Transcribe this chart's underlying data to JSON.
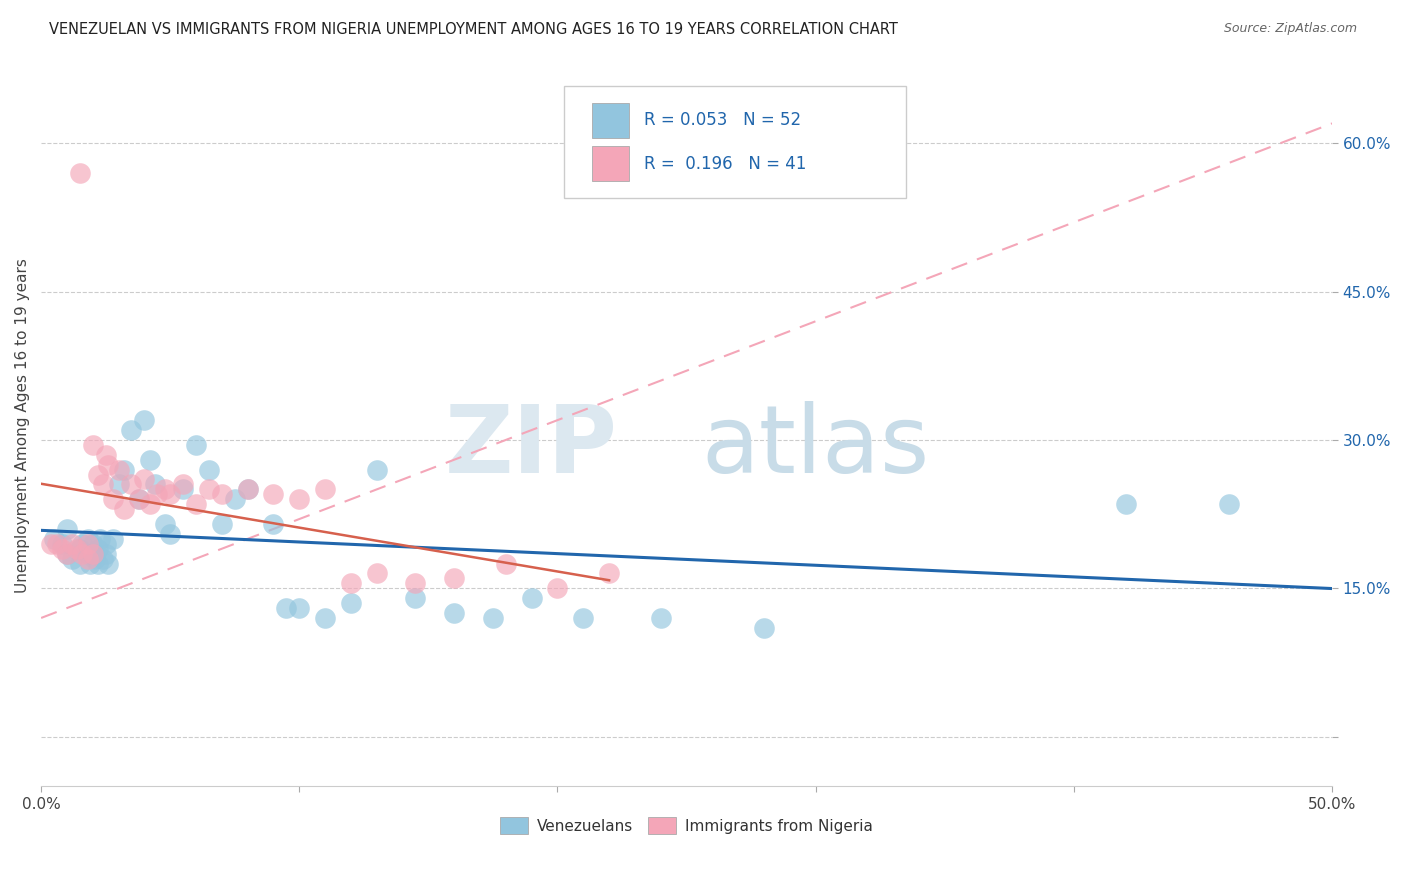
{
  "title": "VENEZUELAN VS IMMIGRANTS FROM NIGERIA UNEMPLOYMENT AMONG AGES 16 TO 19 YEARS CORRELATION CHART",
  "source": "Source: ZipAtlas.com",
  "ylabel": "Unemployment Among Ages 16 to 19 years",
  "xlim": [
    0.0,
    0.5
  ],
  "ylim": [
    -0.05,
    0.68
  ],
  "yticks_right": [
    0.0,
    0.15,
    0.3,
    0.45,
    0.6
  ],
  "ytick_labels_right": [
    "",
    "15.0%",
    "30.0%",
    "45.0%",
    "60.0%"
  ],
  "blue_color": "#92c5de",
  "pink_color": "#f4a6b8",
  "blue_line_color": "#2166ac",
  "pink_line_color": "#d6604d",
  "pink_dash_color": "#f4a6b8",
  "venezuelans_x": [
    0.005,
    0.008,
    0.01,
    0.01,
    0.012,
    0.015,
    0.015,
    0.016,
    0.018,
    0.018,
    0.019,
    0.02,
    0.02,
    0.021,
    0.022,
    0.022,
    0.023,
    0.024,
    0.025,
    0.025,
    0.026,
    0.028,
    0.03,
    0.032,
    0.035,
    0.038,
    0.04,
    0.042,
    0.044,
    0.048,
    0.05,
    0.055,
    0.06,
    0.065,
    0.07,
    0.075,
    0.08,
    0.09,
    0.095,
    0.1,
    0.11,
    0.12,
    0.13,
    0.145,
    0.16,
    0.175,
    0.19,
    0.21,
    0.24,
    0.28,
    0.42,
    0.46
  ],
  "venezuelans_y": [
    0.2,
    0.195,
    0.185,
    0.21,
    0.18,
    0.175,
    0.19,
    0.195,
    0.185,
    0.2,
    0.175,
    0.185,
    0.195,
    0.18,
    0.19,
    0.175,
    0.2,
    0.18,
    0.185,
    0.195,
    0.175,
    0.2,
    0.255,
    0.27,
    0.31,
    0.24,
    0.32,
    0.28,
    0.255,
    0.215,
    0.205,
    0.25,
    0.295,
    0.27,
    0.215,
    0.24,
    0.25,
    0.215,
    0.13,
    0.13,
    0.12,
    0.135,
    0.27,
    0.14,
    0.125,
    0.12,
    0.14,
    0.12,
    0.12,
    0.11,
    0.235,
    0.235
  ],
  "nigeria_x": [
    0.004,
    0.006,
    0.008,
    0.01,
    0.012,
    0.014,
    0.016,
    0.018,
    0.018,
    0.02,
    0.02,
    0.022,
    0.024,
    0.025,
    0.026,
    0.028,
    0.03,
    0.032,
    0.035,
    0.038,
    0.04,
    0.042,
    0.045,
    0.048,
    0.05,
    0.055,
    0.06,
    0.065,
    0.07,
    0.08,
    0.09,
    0.1,
    0.11,
    0.12,
    0.13,
    0.145,
    0.16,
    0.18,
    0.2,
    0.22,
    0.015
  ],
  "nigeria_y": [
    0.195,
    0.195,
    0.19,
    0.185,
    0.195,
    0.19,
    0.185,
    0.195,
    0.18,
    0.185,
    0.295,
    0.265,
    0.255,
    0.285,
    0.275,
    0.24,
    0.27,
    0.23,
    0.255,
    0.24,
    0.26,
    0.235,
    0.245,
    0.25,
    0.245,
    0.255,
    0.235,
    0.25,
    0.245,
    0.25,
    0.245,
    0.24,
    0.25,
    0.155,
    0.165,
    0.155,
    0.16,
    0.175,
    0.15,
    0.165,
    0.57
  ],
  "watermark_zip_color": "#dce8f0",
  "watermark_atlas_color": "#c8dce8"
}
